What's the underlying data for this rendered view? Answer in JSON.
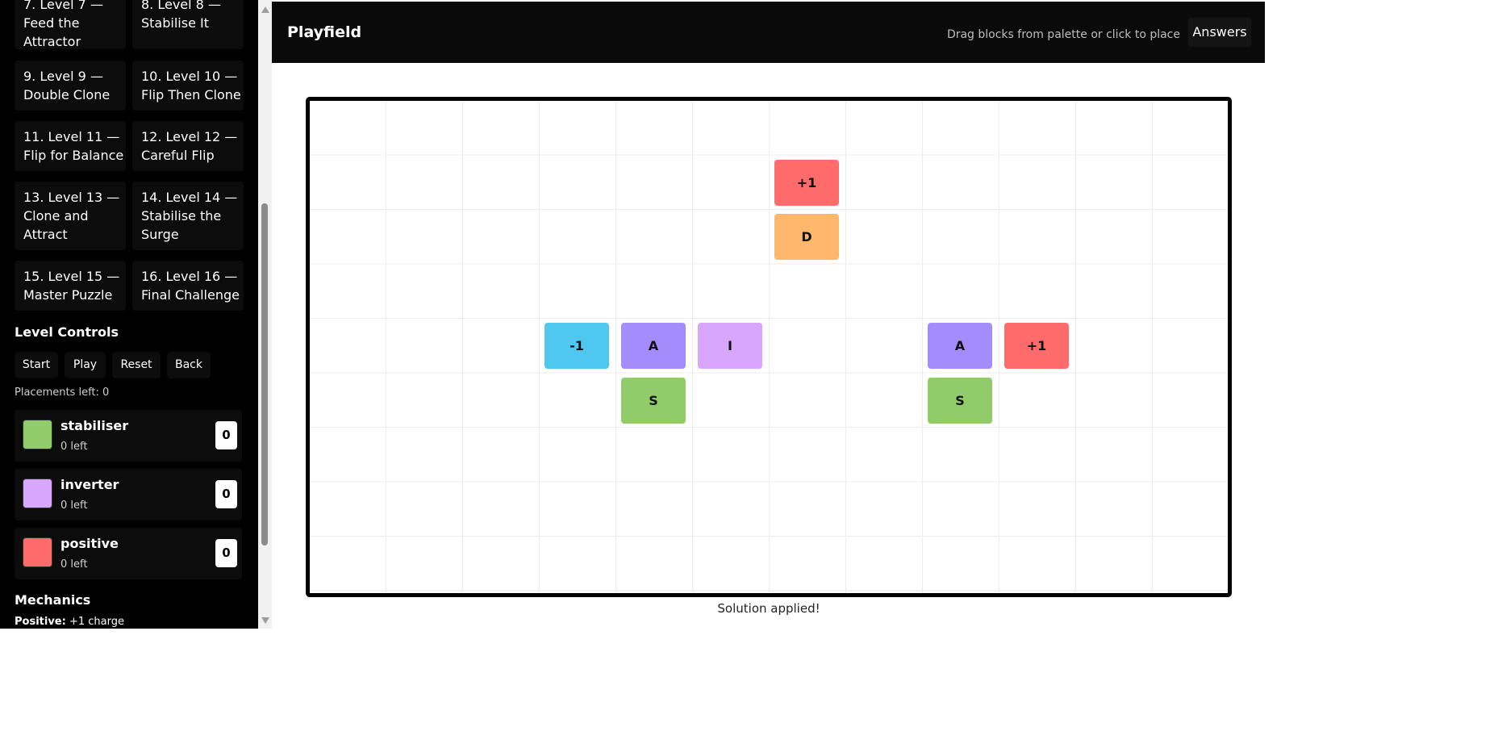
{
  "levels": [
    {
      "label": "7. Level 7 —\nFeed the\nAttractor"
    },
    {
      "label": "8. Level 8 —\nStabilise It"
    },
    {
      "label": "9. Level 9 —\nDouble Clone"
    },
    {
      "label": "10. Level 10 —\nFlip Then Clone"
    },
    {
      "label": "11. Level 11 —\nFlip for Balance"
    },
    {
      "label": "12. Level 12 —\nCareful Flip"
    },
    {
      "label": "13. Level 13 —\nClone and\nAttract"
    },
    {
      "label": "14. Level 14 —\nStabilise the\nSurge"
    },
    {
      "label": "15. Level 15 —\nMaster Puzzle"
    },
    {
      "label": "16. Level 16 —\nFinal Challenge"
    }
  ],
  "controls": {
    "heading": "Level Controls",
    "start": "Start",
    "play": "Play",
    "reset": "Reset",
    "back": "Back",
    "placements_left": "Placements left: 0"
  },
  "inventory": [
    {
      "name": "stabiliser",
      "left": "0 left",
      "count": "0",
      "color": "#90CD6A"
    },
    {
      "name": "inverter",
      "left": "0 left",
      "count": "0",
      "color": "#D8A6FC"
    },
    {
      "name": "positive",
      "left": "0 left",
      "count": "0",
      "color": "#FF6B6B"
    }
  ],
  "mechanics": {
    "heading": "Mechanics",
    "term": "Positive:",
    "desc": "+1 charge"
  },
  "header": {
    "title": "Playfield",
    "hint": "Drag blocks from palette or click to place",
    "answers": "Answers"
  },
  "board": {
    "columns": 12,
    "rows": 9,
    "blocks": [
      {
        "label": "+1",
        "type": "positive",
        "col": 6,
        "row": 1,
        "color": "#FF6B6B"
      },
      {
        "label": "D",
        "type": "duplicator",
        "col": 6,
        "row": 2,
        "color": "#FFB86B"
      },
      {
        "label": "-1",
        "type": "negative",
        "col": 3,
        "row": 4,
        "color": "#4FC8F0"
      },
      {
        "label": "A",
        "type": "attractor",
        "col": 4,
        "row": 4,
        "color": "#A48CFC"
      },
      {
        "label": "I",
        "type": "inverter",
        "col": 5,
        "row": 4,
        "color": "#D8A6FC"
      },
      {
        "label": "A",
        "type": "attractor",
        "col": 8,
        "row": 4,
        "color": "#A48CFC"
      },
      {
        "label": "+1",
        "type": "positive",
        "col": 9,
        "row": 4,
        "color": "#FF6B6B"
      },
      {
        "label": "S",
        "type": "stabiliser",
        "col": 4,
        "row": 5,
        "color": "#90CD6A"
      },
      {
        "label": "S",
        "type": "stabiliser",
        "col": 8,
        "row": 5,
        "color": "#90CD6A"
      }
    ]
  },
  "status": "Solution applied!",
  "scrollbar": {
    "position": 0.58
  }
}
